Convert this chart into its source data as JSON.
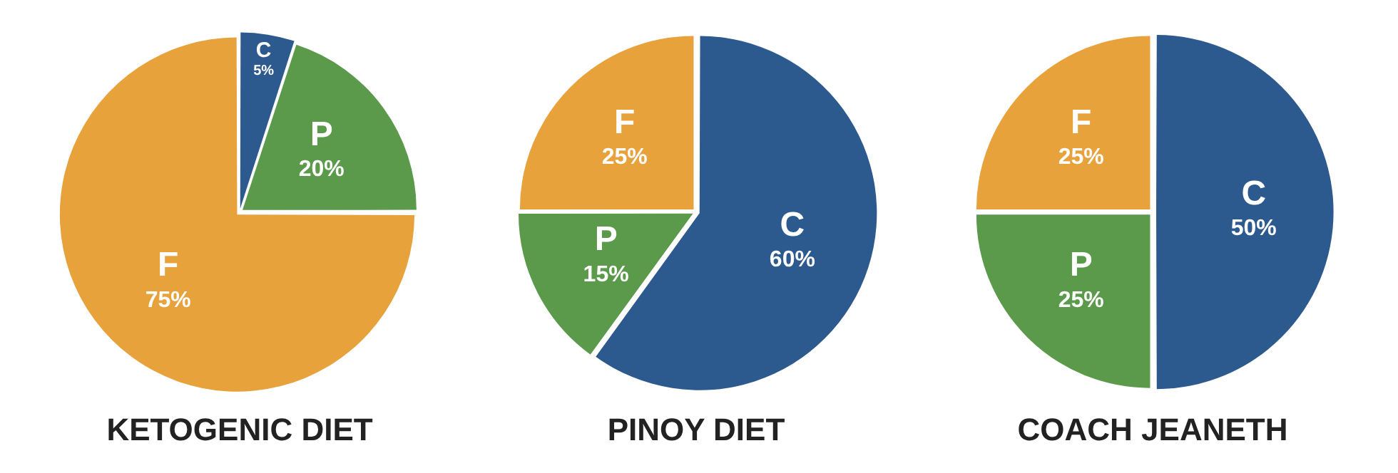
{
  "chart_data": [
    {
      "type": "pie",
      "title": "KETOGENIC DIET",
      "categories": [
        "C",
        "P",
        "F"
      ],
      "values": [
        5,
        20,
        75
      ],
      "colors": [
        "#2c5a8f",
        "#5a9a4a",
        "#e8a23c"
      ],
      "value_labels": [
        "5%",
        "20%",
        "75%"
      ]
    },
    {
      "type": "pie",
      "title": "PINOY DIET",
      "categories": [
        "C",
        "P",
        "F"
      ],
      "values": [
        60,
        15,
        25
      ],
      "colors": [
        "#2c5a8f",
        "#5a9a4a",
        "#e8a23c"
      ],
      "value_labels": [
        "60%",
        "15%",
        "25%"
      ]
    },
    {
      "type": "pie",
      "title": "COACH JEANETH",
      "categories": [
        "C",
        "P",
        "F"
      ],
      "values": [
        50,
        25,
        25
      ],
      "colors": [
        "#2c5a8f",
        "#5a9a4a",
        "#e8a23c"
      ],
      "value_labels": [
        "50%",
        "25%",
        "25%"
      ]
    }
  ]
}
